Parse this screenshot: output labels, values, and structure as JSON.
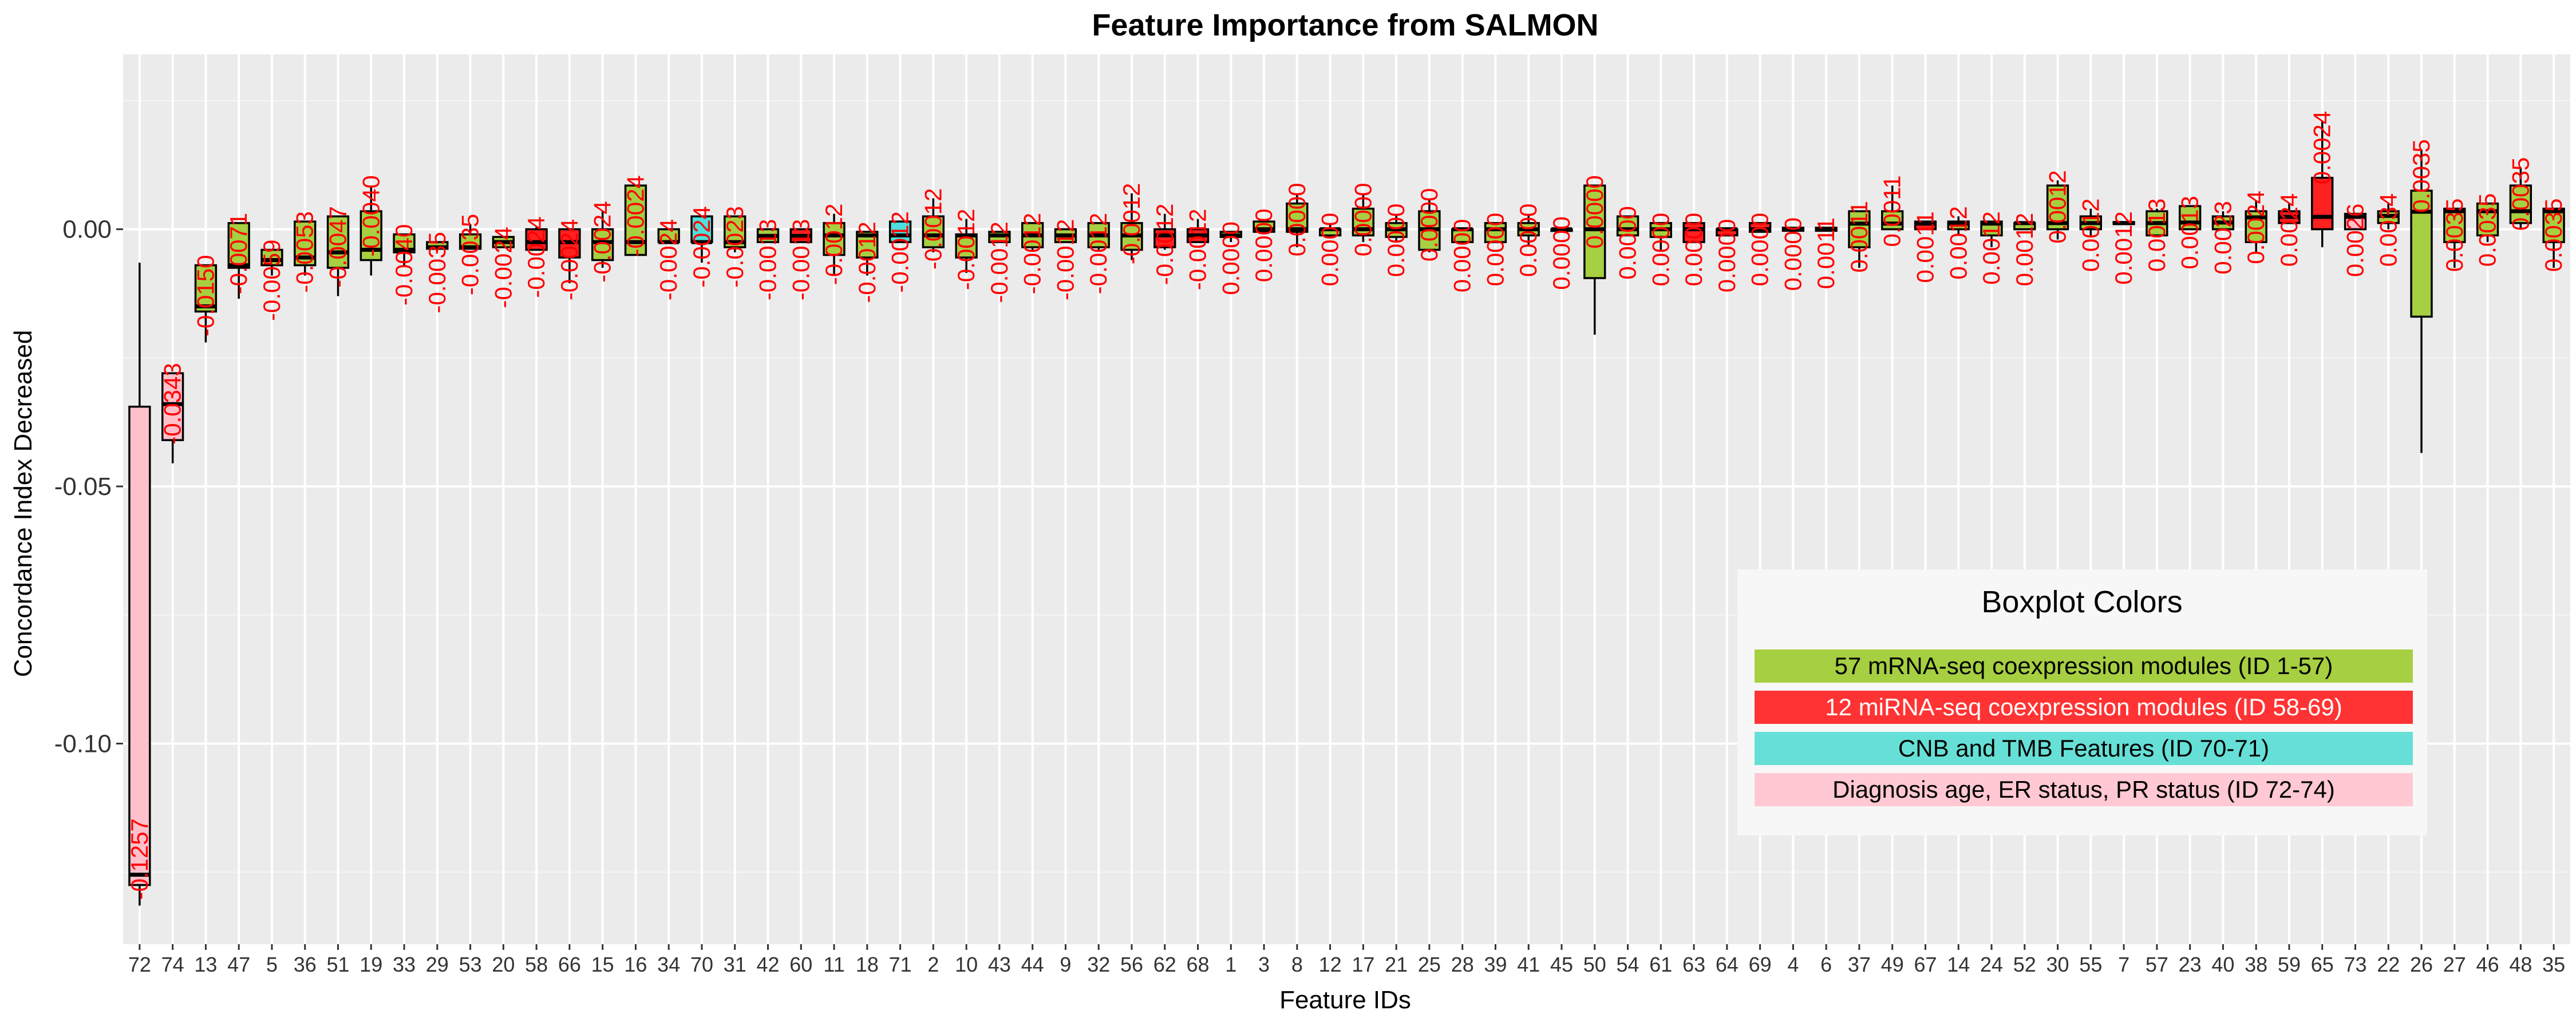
{
  "chart_data": {
    "type": "boxplot",
    "title": "Feature Importance from SALMON",
    "xlabel": "Feature IDs",
    "ylabel": "Concordance Index Decreased",
    "ylim": [
      -0.139,
      0.034
    ],
    "yticks": [
      {
        "value": 0.0,
        "label": "0.00"
      },
      {
        "value": -0.05,
        "label": "-0.05"
      },
      {
        "value": -0.1,
        "label": "-0.10"
      }
    ],
    "grid": true,
    "legend": {
      "title": "Boxplot Colors",
      "placement": "bottom-right",
      "entries": [
        {
          "label": "57 mRNA-seq coexpression modules (ID 1-57)",
          "color": "#a6cf41",
          "text_color": "#000000"
        },
        {
          "label": "12 miRNA-seq coexpression modules (ID 58-69)",
          "color": "#ff3333",
          "text_color": "#ffffff"
        },
        {
          "label": "CNB and TMB Features (ID 70-71)",
          "color": "#66e0d6",
          "text_color": "#000000"
        },
        {
          "label": "Diagnosis age, ER status, PR status (ID 72-74)",
          "color": "#ffc8d2",
          "text_color": "#000000"
        }
      ]
    },
    "colors": {
      "mrna": "#a6cf41",
      "mirna": "#ff2020",
      "cnb": "#4de0dc",
      "clinical": "#ffc0cb"
    },
    "boxes": [
      {
        "id": "72",
        "group": "clinical",
        "label": "-0.1257",
        "min": -0.1315,
        "q1": -0.1275,
        "median": -0.1255,
        "q3": -0.0345,
        "max": -0.0065
      },
      {
        "id": "74",
        "group": "clinical",
        "label": "-0.0343",
        "min": -0.0455,
        "q1": -0.041,
        "median": -0.034,
        "q3": -0.028,
        "max": -0.028
      },
      {
        "id": "13",
        "group": "mrna",
        "label": "-0.0150",
        "min": -0.022,
        "q1": -0.016,
        "median": -0.015,
        "q3": -0.007,
        "max": -0.007
      },
      {
        "id": "47",
        "group": "mrna",
        "label": "-0.0071",
        "min": -0.0135,
        "q1": -0.0075,
        "median": -0.007,
        "q3": 0.0012,
        "max": 0.0012
      },
      {
        "id": "5",
        "group": "mrna",
        "label": "-0.0059",
        "min": -0.009,
        "q1": -0.007,
        "median": -0.006,
        "q3": -0.004,
        "max": -0.004
      },
      {
        "id": "36",
        "group": "mrna",
        "label": "-0.0053",
        "min": -0.009,
        "q1": -0.007,
        "median": -0.0055,
        "q3": 0.0015,
        "max": 0.0015
      },
      {
        "id": "51",
        "group": "mrna",
        "label": "-0.0047",
        "min": -0.013,
        "q1": -0.0075,
        "median": -0.0045,
        "q3": 0.0025,
        "max": 0.0025
      },
      {
        "id": "19",
        "group": "mrna",
        "label": "-0.0040",
        "min": -0.009,
        "q1": -0.006,
        "median": -0.004,
        "q3": 0.0035,
        "max": 0.0085
      },
      {
        "id": "33",
        "group": "mrna",
        "label": "-0.0040",
        "min": -0.007,
        "q1": -0.0045,
        "median": -0.004,
        "q3": -0.001,
        "max": -0.001
      },
      {
        "id": "29",
        "group": "mrna",
        "label": "-0.0035",
        "min": -0.004,
        "q1": -0.0038,
        "median": -0.0035,
        "q3": -0.0025,
        "max": -0.0025
      },
      {
        "id": "53",
        "group": "mrna",
        "label": "-0.0035",
        "min": -0.004,
        "q1": -0.0038,
        "median": -0.0035,
        "q3": -0.001,
        "max": 0.001
      },
      {
        "id": "20",
        "group": "mrna",
        "label": "-0.0024",
        "min": -0.0035,
        "q1": -0.0035,
        "median": -0.0025,
        "q3": -0.0015,
        "max": -0.0015
      },
      {
        "id": "58",
        "group": "mirna",
        "label": "-0.0024",
        "min": -0.004,
        "q1": -0.004,
        "median": -0.0025,
        "q3": 0.0,
        "max": 0.0005
      },
      {
        "id": "66",
        "group": "mirna",
        "label": "-0.0024",
        "min": -0.0105,
        "q1": -0.0055,
        "median": -0.0025,
        "q3": 0.0,
        "max": 0.0
      },
      {
        "id": "15",
        "group": "mrna",
        "label": "-0.0024",
        "min": -0.0075,
        "q1": -0.006,
        "median": -0.0025,
        "q3": 0.0,
        "max": 0.0035
      },
      {
        "id": "16",
        "group": "mrna",
        "label": "-0.0024",
        "min": -0.005,
        "q1": -0.005,
        "median": -0.0025,
        "q3": 0.0085,
        "max": 0.0085
      },
      {
        "id": "34",
        "group": "mrna",
        "label": "-0.0024",
        "min": -0.0025,
        "q1": -0.0025,
        "median": -0.0025,
        "q3": 0.0,
        "max": 0.0
      },
      {
        "id": "70",
        "group": "cnb",
        "label": "-0.0024",
        "min": -0.0065,
        "q1": -0.0025,
        "median": -0.0025,
        "q3": 0.0025,
        "max": 0.0025
      },
      {
        "id": "31",
        "group": "mrna",
        "label": "-0.0023",
        "min": -0.0045,
        "q1": -0.0035,
        "median": -0.0025,
        "q3": 0.0025,
        "max": 0.0025
      },
      {
        "id": "42",
        "group": "mrna",
        "label": "-0.0013",
        "min": -0.0025,
        "q1": -0.0025,
        "median": -0.0013,
        "q3": 0.0,
        "max": 0.0
      },
      {
        "id": "60",
        "group": "mirna",
        "label": "-0.0013",
        "min": -0.0025,
        "q1": -0.0025,
        "median": -0.0013,
        "q3": 0.0,
        "max": 0.0
      },
      {
        "id": "11",
        "group": "mrna",
        "label": "-0.0012",
        "min": -0.009,
        "q1": -0.005,
        "median": -0.0012,
        "q3": 0.0012,
        "max": 0.003
      },
      {
        "id": "18",
        "group": "mrna",
        "label": "-0.0012",
        "min": -0.009,
        "q1": -0.0055,
        "median": -0.0012,
        "q3": -0.0005,
        "max": -0.0005
      },
      {
        "id": "71",
        "group": "cnb",
        "label": "-0.0012",
        "min": -0.0025,
        "q1": -0.0025,
        "median": -0.0012,
        "q3": 0.0015,
        "max": 0.0015
      },
      {
        "id": "2",
        "group": "mrna",
        "label": "-0.0012",
        "min": -0.0045,
        "q1": -0.0035,
        "median": -0.0012,
        "q3": 0.0025,
        "max": 0.006
      },
      {
        "id": "10",
        "group": "mrna",
        "label": "-0.0012",
        "min": -0.0085,
        "q1": -0.0055,
        "median": -0.0012,
        "q3": -0.001,
        "max": 0.002
      },
      {
        "id": "43",
        "group": "mrna",
        "label": "-0.0012",
        "min": -0.0025,
        "q1": -0.0025,
        "median": -0.0012,
        "q3": -0.0005,
        "max": -0.0005
      },
      {
        "id": "44",
        "group": "mrna",
        "label": "-0.0012",
        "min": -0.004,
        "q1": -0.0035,
        "median": -0.0012,
        "q3": 0.0012,
        "max": 0.0012
      },
      {
        "id": "9",
        "group": "mrna",
        "label": "-0.0012",
        "min": -0.0025,
        "q1": -0.0025,
        "median": -0.0012,
        "q3": 0.0,
        "max": 0.0
      },
      {
        "id": "32",
        "group": "mrna",
        "label": "-0.0012",
        "min": -0.004,
        "q1": -0.0035,
        "median": -0.0012,
        "q3": 0.0012,
        "max": 0.0012
      },
      {
        "id": "56",
        "group": "mrna",
        "label": "-0.0012",
        "min": -0.006,
        "q1": -0.004,
        "median": -0.0012,
        "q3": 0.0012,
        "max": 0.007
      },
      {
        "id": "62",
        "group": "mirna",
        "label": "-0.0012",
        "min": -0.004,
        "q1": -0.0035,
        "median": -0.0012,
        "q3": 0.0,
        "max": 0.003
      },
      {
        "id": "68",
        "group": "mirna",
        "label": "-0.0012",
        "min": -0.0025,
        "q1": -0.0025,
        "median": -0.0012,
        "q3": 0.0,
        "max": 0.002
      },
      {
        "id": "1",
        "group": "mirna",
        "label": "-0.0012",
        "min": -0.0025,
        "q1": -0.0015,
        "median": -0.0012,
        "q3": -0.0005,
        "max": -0.0005
      },
      {
        "id": "1",
        "group": "mrna",
        "label": "0.0000",
        "min": -0.0008,
        "q1": -0.0005,
        "median": 0.0,
        "q3": 0.0015,
        "max": 0.002
      },
      {
        "id": "3",
        "group": "mrna",
        "label": "0.0000",
        "min": -0.0035,
        "q1": -0.0005,
        "median": 0.0,
        "q3": 0.005,
        "max": 0.007
      },
      {
        "id": "8",
        "group": "mrna",
        "label": "0.0000",
        "min": -0.0015,
        "q1": -0.0012,
        "median": 0.0,
        "q3": 0.0,
        "max": 0.0012
      },
      {
        "id": "12",
        "group": "mrna",
        "label": "0.0000",
        "min": -0.0025,
        "q1": -0.0012,
        "median": 0.0,
        "q3": 0.004,
        "max": 0.007
      },
      {
        "id": "17",
        "group": "mrna",
        "label": "0.0000",
        "min": -0.0025,
        "q1": -0.0015,
        "median": 0.0,
        "q3": 0.0012,
        "max": 0.003
      },
      {
        "id": "21",
        "group": "mrna",
        "label": "0.0000",
        "min": -0.0045,
        "q1": -0.004,
        "median": 0.0,
        "q3": 0.0035,
        "max": 0.006
      },
      {
        "id": "25",
        "group": "mrna",
        "label": "0.0000",
        "min": -0.0025,
        "q1": -0.0025,
        "median": 0.0,
        "q3": 0.0,
        "max": 0.0
      },
      {
        "id": "28",
        "group": "mrna",
        "label": "0.0000",
        "min": -0.0025,
        "q1": -0.0025,
        "median": 0.0,
        "q3": 0.0012,
        "max": 0.0012
      },
      {
        "id": "39",
        "group": "mrna",
        "label": "0.0000",
        "min": -0.003,
        "q1": -0.0012,
        "median": 0.0,
        "q3": 0.0012,
        "max": 0.003
      },
      {
        "id": "41",
        "group": "mrna",
        "label": "0.0000",
        "min": -0.0005,
        "q1": 0.0,
        "median": 0.0,
        "q3": 0.0,
        "max": 0.0005
      },
      {
        "id": "45",
        "group": "mrna",
        "label": "0.0000",
        "min": -0.0205,
        "q1": -0.0095,
        "median": 0.0,
        "q3": 0.0085,
        "max": 0.0085
      },
      {
        "id": "50",
        "group": "mrna",
        "label": "0.0000",
        "min": -0.0012,
        "q1": -0.0012,
        "median": 0.0,
        "q3": 0.0025,
        "max": 0.0025
      },
      {
        "id": "54",
        "group": "mrna",
        "label": "0.0000",
        "min": -0.004,
        "q1": -0.0015,
        "median": 0.0,
        "q3": 0.0012,
        "max": 0.0012
      },
      {
        "id": "61",
        "group": "mrna",
        "label": "0.0000",
        "min": -0.0025,
        "q1": -0.0025,
        "median": 0.0,
        "q3": 0.0012,
        "max": 0.0012
      },
      {
        "id": "63",
        "group": "mirna",
        "label": "0.0000",
        "min": -0.0012,
        "q1": -0.0012,
        "median": 0.0,
        "q3": 0.0,
        "max": 0.0
      },
      {
        "id": "64",
        "group": "mirna",
        "label": "0.0000",
        "min": -0.0005,
        "q1": -0.0005,
        "median": 0.0,
        "q3": 0.0012,
        "max": 0.0012
      },
      {
        "id": "69",
        "group": "mirna",
        "label": "0.0000",
        "min": -0.0003,
        "q1": -0.0003,
        "median": 0.0,
        "q3": 0.0003,
        "max": 0.0003
      },
      {
        "id": "4",
        "group": "mirna",
        "label": "0.0000",
        "min": -0.0003,
        "q1": -0.0003,
        "median": 0.0,
        "q3": 0.0003,
        "max": 0.0003
      },
      {
        "id": "6",
        "group": "mrna",
        "label": "0.0011",
        "min": -0.0075,
        "q1": -0.0035,
        "median": 0.0011,
        "q3": 0.0035,
        "max": 0.0035
      },
      {
        "id": "37",
        "group": "mrna",
        "label": "0.0011",
        "min": 0.0,
        "q1": 0.0,
        "median": 0.0011,
        "q3": 0.0035,
        "max": 0.0085
      },
      {
        "id": "49",
        "group": "mrna",
        "label": "0.0011",
        "min": 0.0,
        "q1": 0.0,
        "median": 0.0011,
        "q3": 0.0015,
        "max": 0.0015
      },
      {
        "id": "67",
        "group": "mrna",
        "label": "0.0011",
        "min": -0.001,
        "q1": 0.0,
        "median": 0.0011,
        "q3": 0.0015,
        "max": 0.0025
      },
      {
        "id": "14",
        "group": "mirna",
        "label": "0.0011",
        "min": -0.0035,
        "q1": -0.0012,
        "median": 0.0011,
        "q3": 0.0015,
        "max": 0.0015
      },
      {
        "id": "24",
        "group": "mrna",
        "label": "0.0012",
        "min": 0.0,
        "q1": 0.0,
        "median": 0.0012,
        "q3": 0.0012,
        "max": 0.0012
      },
      {
        "id": "52",
        "group": "mrna",
        "label": "0.0012",
        "min": -0.002,
        "q1": 0.0,
        "median": 0.0012,
        "q3": 0.0085,
        "max": 0.0095
      },
      {
        "id": "30",
        "group": "mrna",
        "label": "0.0012",
        "min": -0.0012,
        "q1": 0.0,
        "median": 0.0012,
        "q3": 0.0025,
        "max": 0.004
      },
      {
        "id": "55",
        "group": "mrna",
        "label": "0.0012",
        "min": 0.0008,
        "q1": 0.001,
        "median": 0.0012,
        "q3": 0.0014,
        "max": 0.0015
      },
      {
        "id": "7",
        "group": "mrna",
        "label": "0.0012",
        "min": -0.0012,
        "q1": -0.0012,
        "median": 0.0012,
        "q3": 0.0035,
        "max": 0.004
      },
      {
        "id": "57",
        "group": "mrna",
        "label": "0.0013",
        "min": 0.0,
        "q1": 0.0,
        "median": 0.0013,
        "q3": 0.0045,
        "max": 0.0045
      },
      {
        "id": "23",
        "group": "mrna",
        "label": "0.0013",
        "min": 0.0,
        "q1": 0.0,
        "median": 0.0013,
        "q3": 0.0025,
        "max": 0.0035
      },
      {
        "id": "40",
        "group": "mrna",
        "label": "0.0023",
        "min": -0.0045,
        "q1": -0.0025,
        "median": 0.0023,
        "q3": 0.0035,
        "max": 0.0055
      },
      {
        "id": "38",
        "group": "mrna",
        "label": "0.0024",
        "min": 0.001,
        "q1": 0.0012,
        "median": 0.0024,
        "q3": 0.0035,
        "max": 0.005
      },
      {
        "id": "59",
        "group": "mrna",
        "label": "0.0024",
        "min": -0.0035,
        "q1": 0.0,
        "median": 0.0024,
        "q3": 0.01,
        "max": 0.021
      },
      {
        "id": "65",
        "group": "mirna",
        "label": "0.0024",
        "min": 0.0,
        "q1": 0.0,
        "median": 0.0024,
        "q3": 0.003,
        "max": 0.003
      },
      {
        "id": "73",
        "group": "mirna",
        "label": "0.0026",
        "min": 0.0,
        "q1": 0.0012,
        "median": 0.0026,
        "q3": 0.0035,
        "max": 0.005
      },
      {
        "id": "22",
        "group": "clinical",
        "label": "0.0034",
        "min": -0.0435,
        "q1": -0.017,
        "median": 0.0034,
        "q3": 0.0075,
        "max": 0.0155
      },
      {
        "id": "26",
        "group": "mrna",
        "label": "0.0035",
        "min": -0.0075,
        "q1": -0.0025,
        "median": 0.0035,
        "q3": 0.004,
        "max": 0.004
      },
      {
        "id": "27",
        "group": "mrna",
        "label": "0.0035",
        "min": -0.0025,
        "q1": -0.0012,
        "median": 0.0035,
        "q3": 0.005,
        "max": 0.005
      },
      {
        "id": "46",
        "group": "mrna",
        "label": "0.0035",
        "min": 0.0,
        "q1": 0.0012,
        "median": 0.0035,
        "q3": 0.0085,
        "max": 0.012
      },
      {
        "id": "48",
        "group": "mrna",
        "label": "0.0035",
        "min": -0.0075,
        "q1": -0.0025,
        "median": 0.0035,
        "q3": 0.004,
        "max": 0.004
      },
      {
        "id": "35",
        "group": "mrna",
        "label": "0.0059",
        "min": -0.005,
        "q1": 0.0,
        "median": 0.0059,
        "q3": 0.006,
        "max": 0.007
      }
    ],
    "xtick_labels": [
      "72",
      "74",
      "13",
      "47",
      "5",
      "36",
      "51",
      "19",
      "33",
      "29",
      "53",
      "20",
      "58",
      "66",
      "15",
      "16",
      "34",
      "70",
      "31",
      "42",
      "60",
      "11",
      "18",
      "71",
      "2",
      "10",
      "43",
      "44",
      "9",
      "32",
      "56",
      "62",
      "68",
      "1",
      "3",
      "8",
      "12",
      "17",
      "21",
      "25",
      "28",
      "39",
      "41",
      "45",
      "50",
      "54",
      "61",
      "63",
      "64",
      "69",
      "4",
      "6",
      "37",
      "49",
      "67",
      "14",
      "24",
      "52",
      "30",
      "55",
      "7",
      "57",
      "23",
      "40",
      "38",
      "59",
      "65",
      "73",
      "22",
      "26",
      "27",
      "46",
      "48",
      "35"
    ],
    "data_labels": [
      "-0.1257",
      "-0.0343",
      "-0.0150",
      "-0.0071",
      "-0.0059",
      "-0.0053",
      "-0.0047",
      "-0.0040",
      "-0.0040",
      "-0.0035",
      "-0.0035",
      "-0.0024",
      "-0.0024",
      "-0.0024",
      "-0.0024",
      "-0.0024",
      "-0.0024",
      "-0.0024",
      "-0.0023",
      "-0.0013",
      "-0.0013",
      "-0.0012",
      "-0.0012",
      "-0.0012",
      "-0.0012",
      "-0.0012",
      "-0.0012",
      "-0.0012",
      "-0.0012",
      "-0.0012",
      "-0.0012",
      "-0.0012",
      "-0.0012",
      "0.0000",
      "0.0000",
      "0.0000",
      "0.0000",
      "0.0000",
      "0.0000",
      "0.0000",
      "0.0000",
      "0.0000",
      "0.0000",
      "0.0000",
      "0.0000",
      "0.0000",
      "0.0000",
      "0.0000",
      "0.0000",
      "0.0000",
      "0.0000",
      "0.0011",
      "0.0011",
      "0.0011",
      "0.0011",
      "0.0012",
      "0.0012",
      "0.0012",
      "0.0012",
      "0.0012",
      "0.0012",
      "0.0013",
      "0.0013",
      "0.0023",
      "0.0024",
      "0.0024",
      "0.0024",
      "0.0026",
      "0.0034",
      "0.0035",
      "0.0035",
      "0.0035",
      "0.0035",
      "0.0035",
      "0.0059"
    ],
    "box_groups": [
      "clinical",
      "clinical",
      "mrna",
      "mrna",
      "mrna",
      "mrna",
      "mrna",
      "mrna",
      "mrna",
      "mrna",
      "mrna",
      "mrna",
      "mirna",
      "mirna",
      "mrna",
      "mrna",
      "mrna",
      "cnb",
      "mrna",
      "mrna",
      "mirna",
      "mrna",
      "mrna",
      "cnb",
      "mrna",
      "mrna",
      "mrna",
      "mrna",
      "mrna",
      "mrna",
      "mrna",
      "mirna",
      "mirna",
      "mrna",
      "mrna",
      "mrna",
      "mrna",
      "mrna",
      "mrna",
      "mrna",
      "mrna",
      "mrna",
      "mrna",
      "mrna",
      "mrna",
      "mrna",
      "mrna",
      "mirna",
      "mirna",
      "mirna",
      "mrna",
      "mrna",
      "mrna",
      "mrna",
      "mirna",
      "mrna",
      "mrna",
      "mrna",
      "mrna",
      "mrna",
      "mrna",
      "mrna",
      "mrna",
      "mrna",
      "mrna",
      "mirna",
      "mirna",
      "clinical",
      "mrna",
      "mrna",
      "mrna",
      "mrna",
      "mrna",
      "mrna"
    ]
  }
}
